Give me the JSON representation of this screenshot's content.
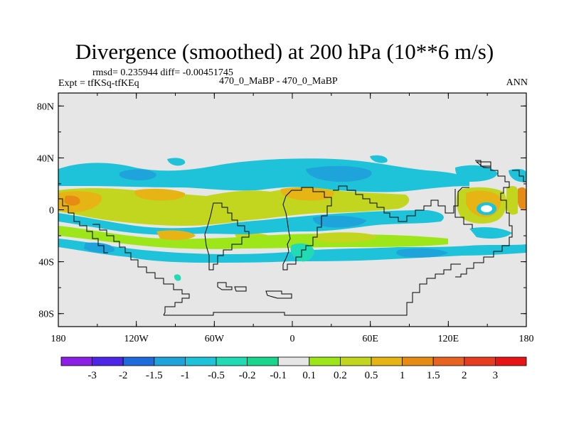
{
  "title": "Divergence (smoothed) at 200 hPa (10**6 m/s)",
  "stats_line": "rmsd= 0.235944 diff= -0.00451745",
  "expt_line": "Expt = tfKSq-tfKEq",
  "case_line": "470_0_MaBP - 470_0_MaBP",
  "season": "ANN",
  "map": {
    "projection": "cylindrical equidistant",
    "lon_range": [
      -180,
      180
    ],
    "lat_range": [
      -90,
      90
    ],
    "background_color": "#e6e6e6",
    "lat_ticks": [
      {
        "value": 80,
        "label": "80N"
      },
      {
        "value": 40,
        "label": "40N"
      },
      {
        "value": 0,
        "label": "0"
      },
      {
        "value": -40,
        "label": "40S"
      },
      {
        "value": -80,
        "label": "80S"
      }
    ],
    "lon_ticks": [
      {
        "value": -180,
        "label": "180"
      },
      {
        "value": -120,
        "label": "120W"
      },
      {
        "value": -60,
        "label": "60W"
      },
      {
        "value": 0,
        "label": "0"
      },
      {
        "value": 60,
        "label": "60E"
      },
      {
        "value": 120,
        "label": "120E"
      },
      {
        "value": 180,
        "label": "180"
      }
    ]
  },
  "colorbar": {
    "levels": [
      "-3",
      "-2",
      "-1.5",
      "-1",
      "-0.5",
      "-0.2",
      "-0.1",
      "0.1",
      "0.2",
      "0.5",
      "1",
      "1.5",
      "2",
      "3"
    ],
    "colors": [
      "#8c1fe6",
      "#4d26e6",
      "#1f6bdb",
      "#1fa3db",
      "#1fc3d9",
      "#21dbb5",
      "#19d68c",
      "#e6e6e6",
      "#9ce619",
      "#c3d61f",
      "#e6b414",
      "#e68c14",
      "#e6641f",
      "#e63d1f",
      "#e61414"
    ]
  }
}
